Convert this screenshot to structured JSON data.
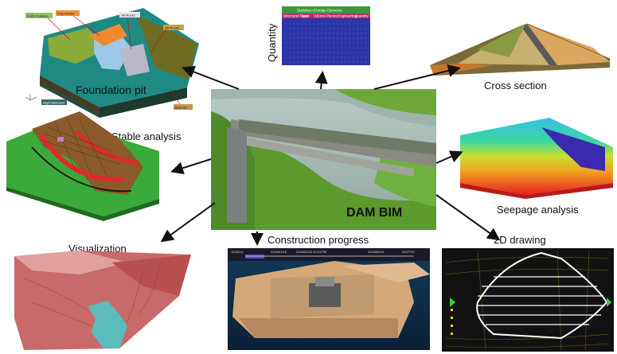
{
  "center": {
    "title": "DAM BIM"
  },
  "nodes": {
    "foundation_pit": {
      "label": "Foundation pit",
      "callouts": [
        "Earth Collapse",
        "Clay Mantle",
        "Silt Rocks",
        "Silt Rocks",
        "Right Abutment",
        "Bedrock"
      ]
    },
    "quantity": {
      "label": "Quantity",
      "table_title": "Statistics of bridge Elements",
      "columns": [
        "Structural Name",
        "Type",
        "Volume",
        "Pieces",
        "Engineering",
        "Quantity"
      ]
    },
    "cross_section": {
      "label": "Cross section"
    },
    "stable_analysis": {
      "label": "Stable analysis"
    },
    "seepage_analysis": {
      "label": "Seepage analysis"
    },
    "visualization": {
      "label": "Visualization"
    },
    "construction_progress": {
      "label": "Construction progress",
      "timeline": [
        "12/09/14",
        "2018/01/15",
        "2018/02/15 20:13 PM",
        "2018/05/15",
        "04/27/19"
      ]
    },
    "drawing_2d": {
      "label": "2D drawing"
    }
  },
  "colors": {
    "arrow": "#111111",
    "quantity_table_bg": "#2b36a8",
    "quantity_table_header": "#3a9a3a",
    "center_hill": "#5c9a2e"
  }
}
